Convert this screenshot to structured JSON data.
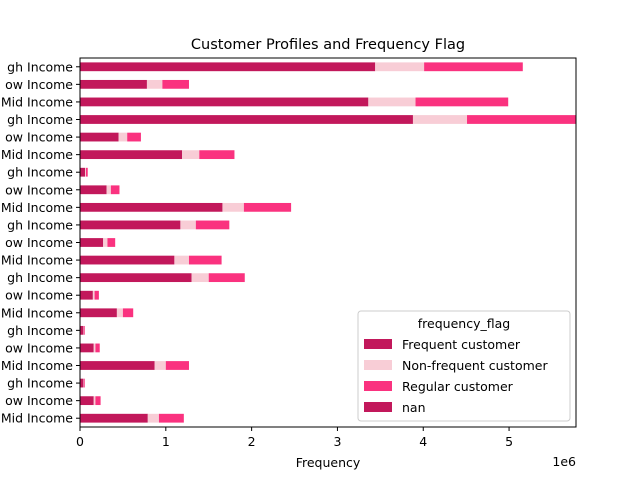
{
  "chart_data": {
    "type": "bar",
    "orientation": "horizontal",
    "stacked": true,
    "title": "Customer Profiles and Frequency Flag",
    "xlabel": "Frequency",
    "ylabel": "",
    "x_scale_note": "1e6",
    "xlim": [
      0,
      5780000
    ],
    "x_ticks": [
      0,
      1,
      2,
      3,
      4,
      5
    ],
    "categories": [
      "gh Income",
      "ow Income",
      "Mid Income",
      "gh Income",
      "ow Income",
      "Mid Income",
      "gh Income",
      "ow Income",
      "Mid Income",
      "gh Income",
      "ow Income",
      "Mid Income",
      "gh Income",
      "ow Income",
      "Mid Income",
      "gh Income",
      "ow Income",
      "Mid Income",
      "gh Income",
      "ow Income",
      "Mid Income"
    ],
    "series": [
      {
        "name": "Frequent customer",
        "color": "#c2185b",
        "values": [
          3440000,
          780000,
          3360000,
          3880000,
          450000,
          1190000,
          60000,
          310000,
          1660000,
          1170000,
          270000,
          1100000,
          1300000,
          150000,
          430000,
          40000,
          160000,
          870000,
          40000,
          160000,
          790000
        ]
      },
      {
        "name": "Non-frequent customer",
        "color": "#f8cdd6",
        "values": [
          570000,
          180000,
          550000,
          630000,
          100000,
          200000,
          10000,
          50000,
          250000,
          180000,
          50000,
          170000,
          200000,
          20000,
          70000,
          5000,
          20000,
          130000,
          5000,
          20000,
          130000
        ]
      },
      {
        "name": "Regular customer",
        "color": "#fa327f",
        "values": [
          1150000,
          310000,
          1080000,
          1280000,
          160000,
          410000,
          20000,
          100000,
          550000,
          390000,
          90000,
          380000,
          420000,
          50000,
          120000,
          10000,
          50000,
          270000,
          10000,
          60000,
          290000
        ]
      },
      {
        "name": "nan",
        "color": "#c2185b",
        "values": [
          0,
          0,
          0,
          0,
          0,
          0,
          0,
          0,
          0,
          0,
          0,
          0,
          0,
          0,
          0,
          0,
          0,
          0,
          0,
          0,
          0
        ]
      }
    ],
    "legend": {
      "title": "frequency_flag",
      "placement": "lower-right"
    },
    "grid": false
  }
}
